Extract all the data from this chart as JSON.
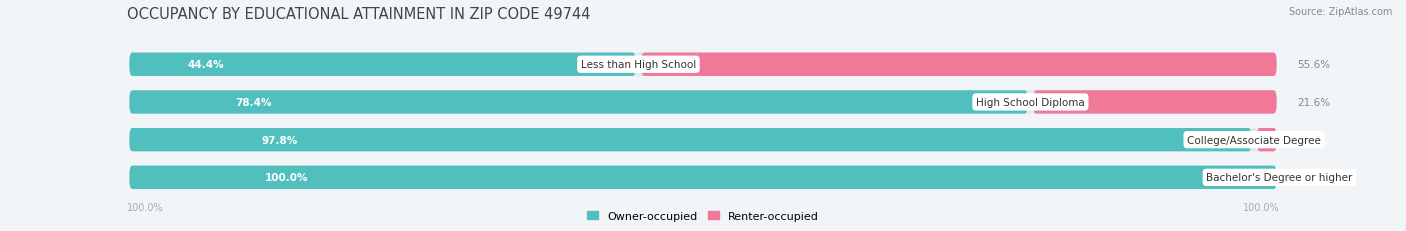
{
  "title": "OCCUPANCY BY EDUCATIONAL ATTAINMENT IN ZIP CODE 49744",
  "source": "Source: ZipAtlas.com",
  "categories": [
    "Less than High School",
    "High School Diploma",
    "College/Associate Degree",
    "Bachelor's Degree or higher"
  ],
  "owner_values": [
    44.4,
    78.4,
    97.8,
    100.0
  ],
  "renter_values": [
    55.6,
    21.6,
    2.2,
    0.0
  ],
  "owner_color": "#52bfbf",
  "renter_color": "#f07898",
  "background_color": "#f2f5f8",
  "bar_background": "#e2e8ef",
  "title_fontsize": 10.5,
  "label_fontsize": 7.5,
  "pct_fontsize": 7.5,
  "axis_label_fontsize": 7,
  "legend_fontsize": 8,
  "x_left_label": "100.0%",
  "x_right_label": "100.0%"
}
